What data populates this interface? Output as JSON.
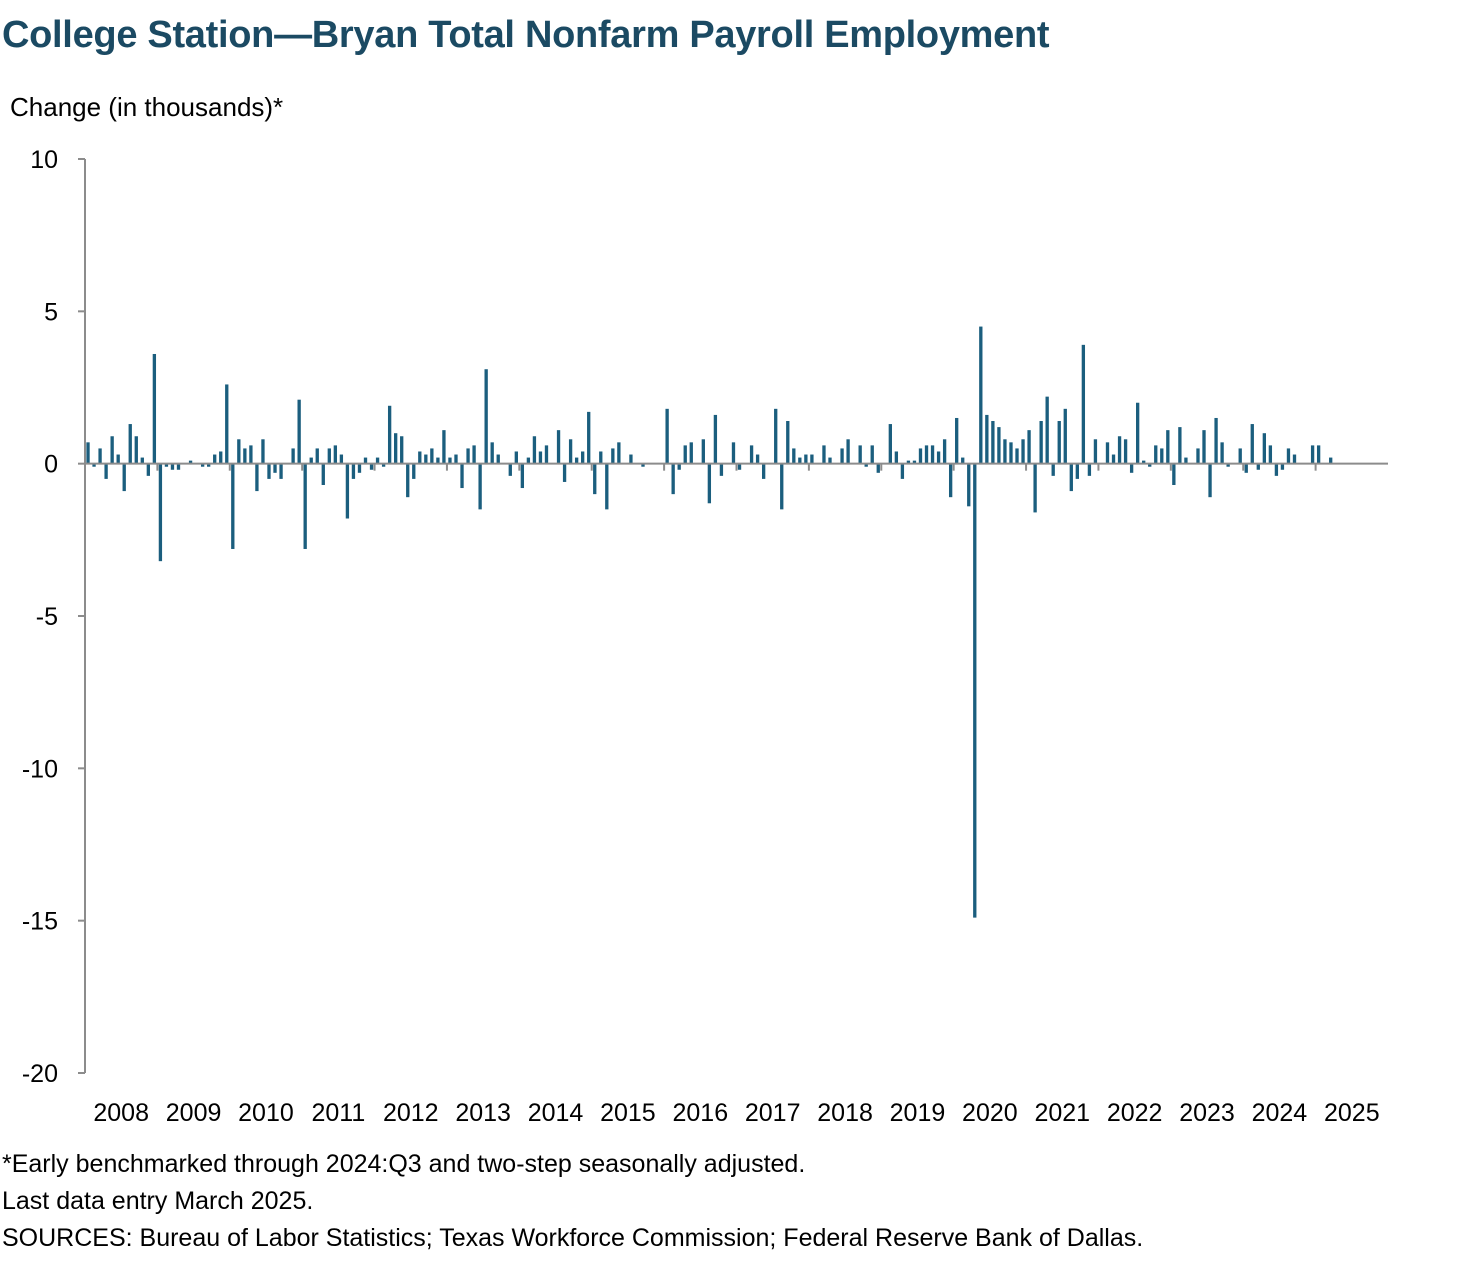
{
  "title": "College Station—Bryan Total Nonfarm Payroll Employment",
  "chart_data": {
    "type": "bar",
    "title": "College Station—Bryan Total Nonfarm Payroll Employment",
    "ylabel": "Change (in thousands)*",
    "xlabel": "",
    "ylim": [
      -20,
      10
    ],
    "yticks": [
      10,
      5,
      0,
      -5,
      -10,
      -15,
      -20
    ],
    "xticks": [
      "2008",
      "2009",
      "2010",
      "2011",
      "2012",
      "2013",
      "2014",
      "2015",
      "2016",
      "2017",
      "2018",
      "2019",
      "2020",
      "2021",
      "2022",
      "2023",
      "2024",
      "2025"
    ],
    "x_start": "2008-01",
    "x_end": "2025-12",
    "frequency": "monthly",
    "color": "#1b5e7e",
    "values": [
      0.7,
      -0.1,
      0.5,
      -0.5,
      0.9,
      0.3,
      -0.9,
      1.3,
      0.9,
      0.2,
      -0.4,
      3.6,
      -3.2,
      -0.1,
      -0.2,
      -0.2,
      0.0,
      0.1,
      0.0,
      -0.1,
      -0.1,
      0.3,
      0.4,
      2.6,
      -2.8,
      0.8,
      0.5,
      0.6,
      -0.9,
      0.8,
      -0.5,
      -0.3,
      -0.5,
      0.0,
      0.5,
      2.1,
      -2.8,
      0.2,
      0.5,
      -0.7,
      0.5,
      0.6,
      0.3,
      -1.8,
      -0.5,
      -0.3,
      0.2,
      -0.2,
      0.2,
      -0.1,
      1.9,
      1.0,
      0.9,
      -1.1,
      -0.5,
      0.4,
      0.3,
      0.5,
      0.2,
      1.1,
      0.2,
      0.3,
      -0.8,
      0.5,
      0.6,
      -1.5,
      3.1,
      0.7,
      0.3,
      0.0,
      -0.4,
      0.4,
      -0.8,
      0.2,
      0.9,
      0.4,
      0.6,
      0.0,
      1.1,
      -0.6,
      0.8,
      0.2,
      0.4,
      1.7,
      -1.0,
      0.4,
      -1.5,
      0.5,
      0.7,
      0.0,
      0.3,
      0.0,
      -0.1,
      0.0,
      0.0,
      0.0,
      1.8,
      -1.0,
      -0.2,
      0.6,
      0.7,
      0.0,
      0.8,
      -1.3,
      1.6,
      -0.4,
      0.0,
      0.7,
      -0.2,
      0.0,
      0.6,
      0.3,
      -0.5,
      0.0,
      1.8,
      -1.5,
      1.4,
      0.5,
      0.2,
      0.3,
      0.3,
      0.0,
      0.6,
      0.2,
      0.0,
      0.5,
      0.8,
      0.0,
      0.6,
      -0.1,
      0.6,
      -0.3,
      0.0,
      1.3,
      0.4,
      -0.5,
      0.1,
      0.1,
      0.5,
      0.6,
      0.6,
      0.4,
      0.8,
      -1.1,
      1.5,
      0.2,
      -1.4,
      -14.9,
      4.5,
      1.6,
      1.4,
      1.2,
      0.8,
      0.7,
      0.5,
      0.8,
      1.1,
      -1.6,
      1.4,
      2.2,
      -0.4,
      1.4,
      1.8,
      -0.9,
      -0.5,
      3.9,
      -0.4,
      0.8,
      0.0,
      0.7,
      0.3,
      0.9,
      0.8,
      -0.3,
      2.0,
      0.1,
      -0.1,
      0.6,
      0.5,
      1.1,
      -0.7,
      1.2,
      0.2,
      0.0,
      0.5,
      1.1,
      -1.1,
      1.5,
      0.7,
      -0.1,
      0.0,
      0.5,
      -0.3,
      1.3,
      -0.2,
      1.0,
      0.6,
      -0.4,
      -0.2,
      0.5,
      0.3,
      0.0,
      0.0,
      0.6,
      0.6,
      0.0,
      0.2
    ]
  },
  "notes": {
    "line1": "*Early benchmarked through 2024:Q3 and two-step seasonally adjusted.",
    "line2": "Last data entry March 2025.",
    "line3": "SOURCES: Bureau of Labor Statistics; Texas Workforce Commission; Federal Reserve Bank of Dallas."
  }
}
